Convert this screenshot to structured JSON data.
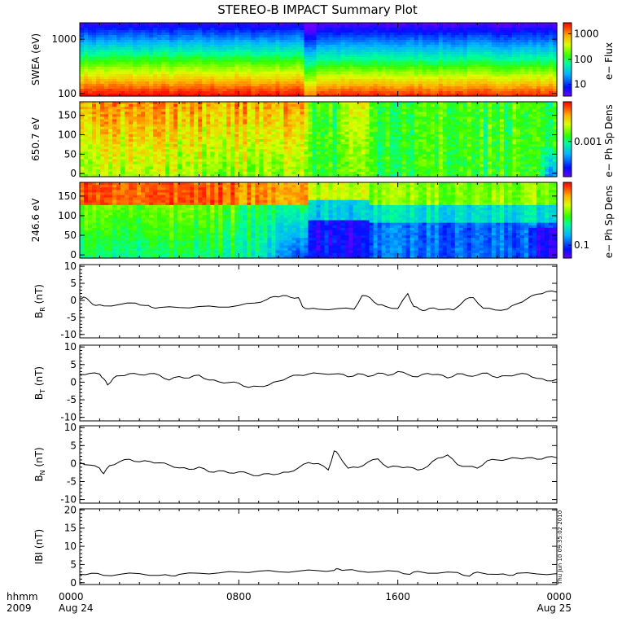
{
  "chart_data": {
    "type": "summary_plot",
    "title": "STEREO-B IMPACT Summary Plot",
    "time_axis": {
      "ticks": [
        {
          "hour": 0,
          "label": "0000",
          "sub": "Aug 24"
        },
        {
          "hour": 8,
          "label": "0800",
          "sub": ""
        },
        {
          "hour": 16,
          "label": "1600",
          "sub": ""
        },
        {
          "hour": 24,
          "label": "0000",
          "sub": "Aug 25"
        }
      ],
      "format_label": "hhmm",
      "year_label": "2009",
      "range_hours": [
        0,
        24
      ]
    },
    "timestamp": "Thu Jun 10 09:35:02 2010",
    "spectrograms": [
      {
        "ylabel": "SWEA (eV)",
        "yscale": "log",
        "ylim": [
          90,
          2000
        ],
        "yticks": [
          {
            "v": 100,
            "label": "100"
          },
          {
            "v": 1000,
            "label": "1000"
          }
        ],
        "colorbar_label": "e− Flux",
        "colorbar_ticks": [
          {
            "f": 0.85,
            "label": "1000"
          },
          {
            "f": 0.5,
            "label": "100"
          },
          {
            "f": 0.16,
            "label": "10"
          }
        ],
        "kind": "energy"
      },
      {
        "ylabel": "650.7 eV",
        "yscale": "linear",
        "ylim": [
          -8,
          185
        ],
        "yticks": [
          {
            "v": 0,
            "label": "0"
          },
          {
            "v": 50,
            "label": "50"
          },
          {
            "v": 100,
            "label": "100"
          },
          {
            "v": 150,
            "label": "150"
          }
        ],
        "colorbar_label": "e− Ph Sp Dens",
        "colorbar_ticks": [
          {
            "f": 0.47,
            "label": "0.001"
          }
        ],
        "kind": "pitch650"
      },
      {
        "ylabel": "246.6 eV",
        "yscale": "linear",
        "ylim": [
          -8,
          185
        ],
        "yticks": [
          {
            "v": 0,
            "label": "0"
          },
          {
            "v": 50,
            "label": "50"
          },
          {
            "v": 100,
            "label": "100"
          },
          {
            "v": 150,
            "label": "150"
          }
        ],
        "colorbar_label": "e− Ph Sp Dens",
        "colorbar_ticks": [
          {
            "f": 0.17,
            "label": "0.1"
          }
        ],
        "kind": "pitch246"
      }
    ],
    "line_panels": [
      {
        "name": "BR",
        "ylabel_main": "B",
        "ylabel_sub": "R",
        "ylabel_unit": " (nT)",
        "ylim": [
          -11,
          10.5
        ],
        "yticks": [
          -10,
          -5,
          0,
          5,
          10
        ],
        "x": [
          0,
          0.2,
          0.5,
          0.8,
          1.2,
          2,
          2.8,
          3.3,
          3.6,
          4,
          5,
          6,
          7,
          8,
          8.8,
          9.4,
          9.8,
          10.2,
          10.6,
          11,
          11.2,
          11.5,
          12,
          13,
          13.8,
          14.2,
          14.6,
          15,
          15.4,
          16,
          16.5,
          16.8,
          17.1,
          17.4,
          17.8,
          18.3,
          18.8,
          19.4,
          19.8,
          20.3,
          20.9,
          21.5,
          22,
          22.5,
          23,
          23.5,
          24
        ],
        "y": [
          0.5,
          1.0,
          -0.3,
          -1.5,
          -1.6,
          -1.2,
          -0.8,
          -1.5,
          -2.0,
          -2.1,
          -2.1,
          -1.8,
          -2.0,
          -1.5,
          -0.8,
          0.2,
          1.1,
          1.4,
          0.9,
          0.8,
          -1.8,
          -2.5,
          -2.6,
          -2.4,
          -2.6,
          1.4,
          0.8,
          -1.3,
          -1.8,
          -2.4,
          2.0,
          -1.8,
          -2.6,
          -2.9,
          -2.2,
          -2.7,
          -2.8,
          0.3,
          0.8,
          -2.3,
          -2.8,
          -2.6,
          -1.0,
          0.5,
          1.8,
          2.6,
          2.4
        ]
      },
      {
        "name": "BT",
        "ylabel_main": "B",
        "ylabel_sub": "T",
        "ylabel_unit": " (nT)",
        "ylim": [
          -11,
          10.5
        ],
        "yticks": [
          -10,
          -5,
          0,
          5,
          10
        ],
        "x": [
          0,
          0.5,
          1,
          1.2,
          1.4,
          1.7,
          2,
          2.5,
          3,
          3.5,
          4,
          4.5,
          5,
          5.5,
          6,
          6.5,
          7,
          7.5,
          8,
          8.5,
          9,
          9.5,
          10,
          10.5,
          11,
          11.5,
          12,
          13,
          13.5,
          14,
          14.5,
          15,
          15.5,
          16,
          16.5,
          17,
          17.5,
          18,
          18.5,
          19,
          19.5,
          20,
          20.5,
          21,
          21.5,
          22,
          22.5,
          23,
          23.5,
          24
        ],
        "y": [
          2.2,
          2.5,
          2.3,
          1.0,
          -0.8,
          1.2,
          1.8,
          2.4,
          2.1,
          2.4,
          2.0,
          0.6,
          1.6,
          1.2,
          2.0,
          0.6,
          0.1,
          -0.1,
          -0.3,
          -1.5,
          -1.2,
          -0.8,
          0.3,
          1.4,
          2.0,
          2.3,
          2.5,
          2.4,
          1.5,
          2.4,
          1.6,
          2.6,
          1.9,
          3.0,
          2.2,
          1.5,
          2.5,
          2.2,
          1.2,
          2.4,
          1.8,
          2.0,
          2.6,
          1.3,
          1.8,
          2.2,
          2.3,
          1.1,
          0.4,
          0.8
        ]
      },
      {
        "name": "BN",
        "ylabel_main": "B",
        "ylabel_sub": "N",
        "ylabel_unit": " (nT)",
        "ylim": [
          -11,
          10.5
        ],
        "yticks": [
          -10,
          -5,
          0,
          5,
          10
        ],
        "x": [
          0,
          0.5,
          1,
          1.2,
          1.5,
          2,
          2.5,
          3,
          3.5,
          4,
          4.5,
          5,
          5.5,
          6,
          6.5,
          7,
          7.5,
          8,
          8.5,
          9,
          9.5,
          10,
          10.5,
          11,
          11.5,
          12,
          12.5,
          12.8,
          13,
          13.5,
          14,
          14.5,
          15,
          15.5,
          16,
          16.5,
          17,
          17.5,
          18,
          18.5,
          19,
          19.5,
          20,
          20.5,
          21,
          21.5,
          22,
          22.5,
          23,
          23.5,
          24
        ],
        "y": [
          0.3,
          -0.4,
          -1.3,
          -2.8,
          -0.6,
          0.5,
          1.2,
          0.5,
          0.6,
          0.2,
          -0.4,
          -1.2,
          -1.6,
          -1.0,
          -2.3,
          -2.0,
          -2.6,
          -2.3,
          -2.8,
          -3.4,
          -2.8,
          -2.9,
          -2.4,
          -1.2,
          0.3,
          0.0,
          -1.8,
          3.5,
          2.6,
          -1.3,
          -1.1,
          0.4,
          1.3,
          -1.1,
          -0.8,
          -1.0,
          -1.8,
          -0.8,
          1.5,
          2.4,
          -0.3,
          -0.8,
          -1.3,
          0.8,
          1.0,
          1.2,
          1.5,
          1.6,
          1.2,
          1.8,
          1.6
        ]
      },
      {
        "name": "Bmag",
        "ylabel_main": "IBI",
        "ylabel_sub": "",
        "ylabel_unit": " (nT)",
        "ylim": [
          -0.5,
          20.3
        ],
        "yticks": [
          0,
          5,
          10,
          15,
          20
        ],
        "x": [
          0,
          0.6,
          1.2,
          2,
          3,
          4,
          4.6,
          5,
          6,
          7,
          8,
          9,
          10,
          11,
          12,
          12.8,
          13,
          13.4,
          14,
          15,
          16,
          16.6,
          17,
          18,
          19,
          19.6,
          20,
          21,
          21.6,
          22,
          23,
          24
        ],
        "y": [
          2.3,
          2.6,
          2.0,
          2.3,
          2.5,
          2.0,
          1.9,
          2.3,
          2.6,
          2.7,
          2.9,
          3.2,
          3.0,
          3.2,
          3.3,
          3.4,
          3.8,
          3.5,
          3.2,
          3.0,
          3.1,
          2.3,
          3.1,
          2.6,
          2.8,
          1.8,
          2.9,
          2.3,
          2.0,
          2.6,
          2.4,
          2.5
        ]
      }
    ]
  }
}
